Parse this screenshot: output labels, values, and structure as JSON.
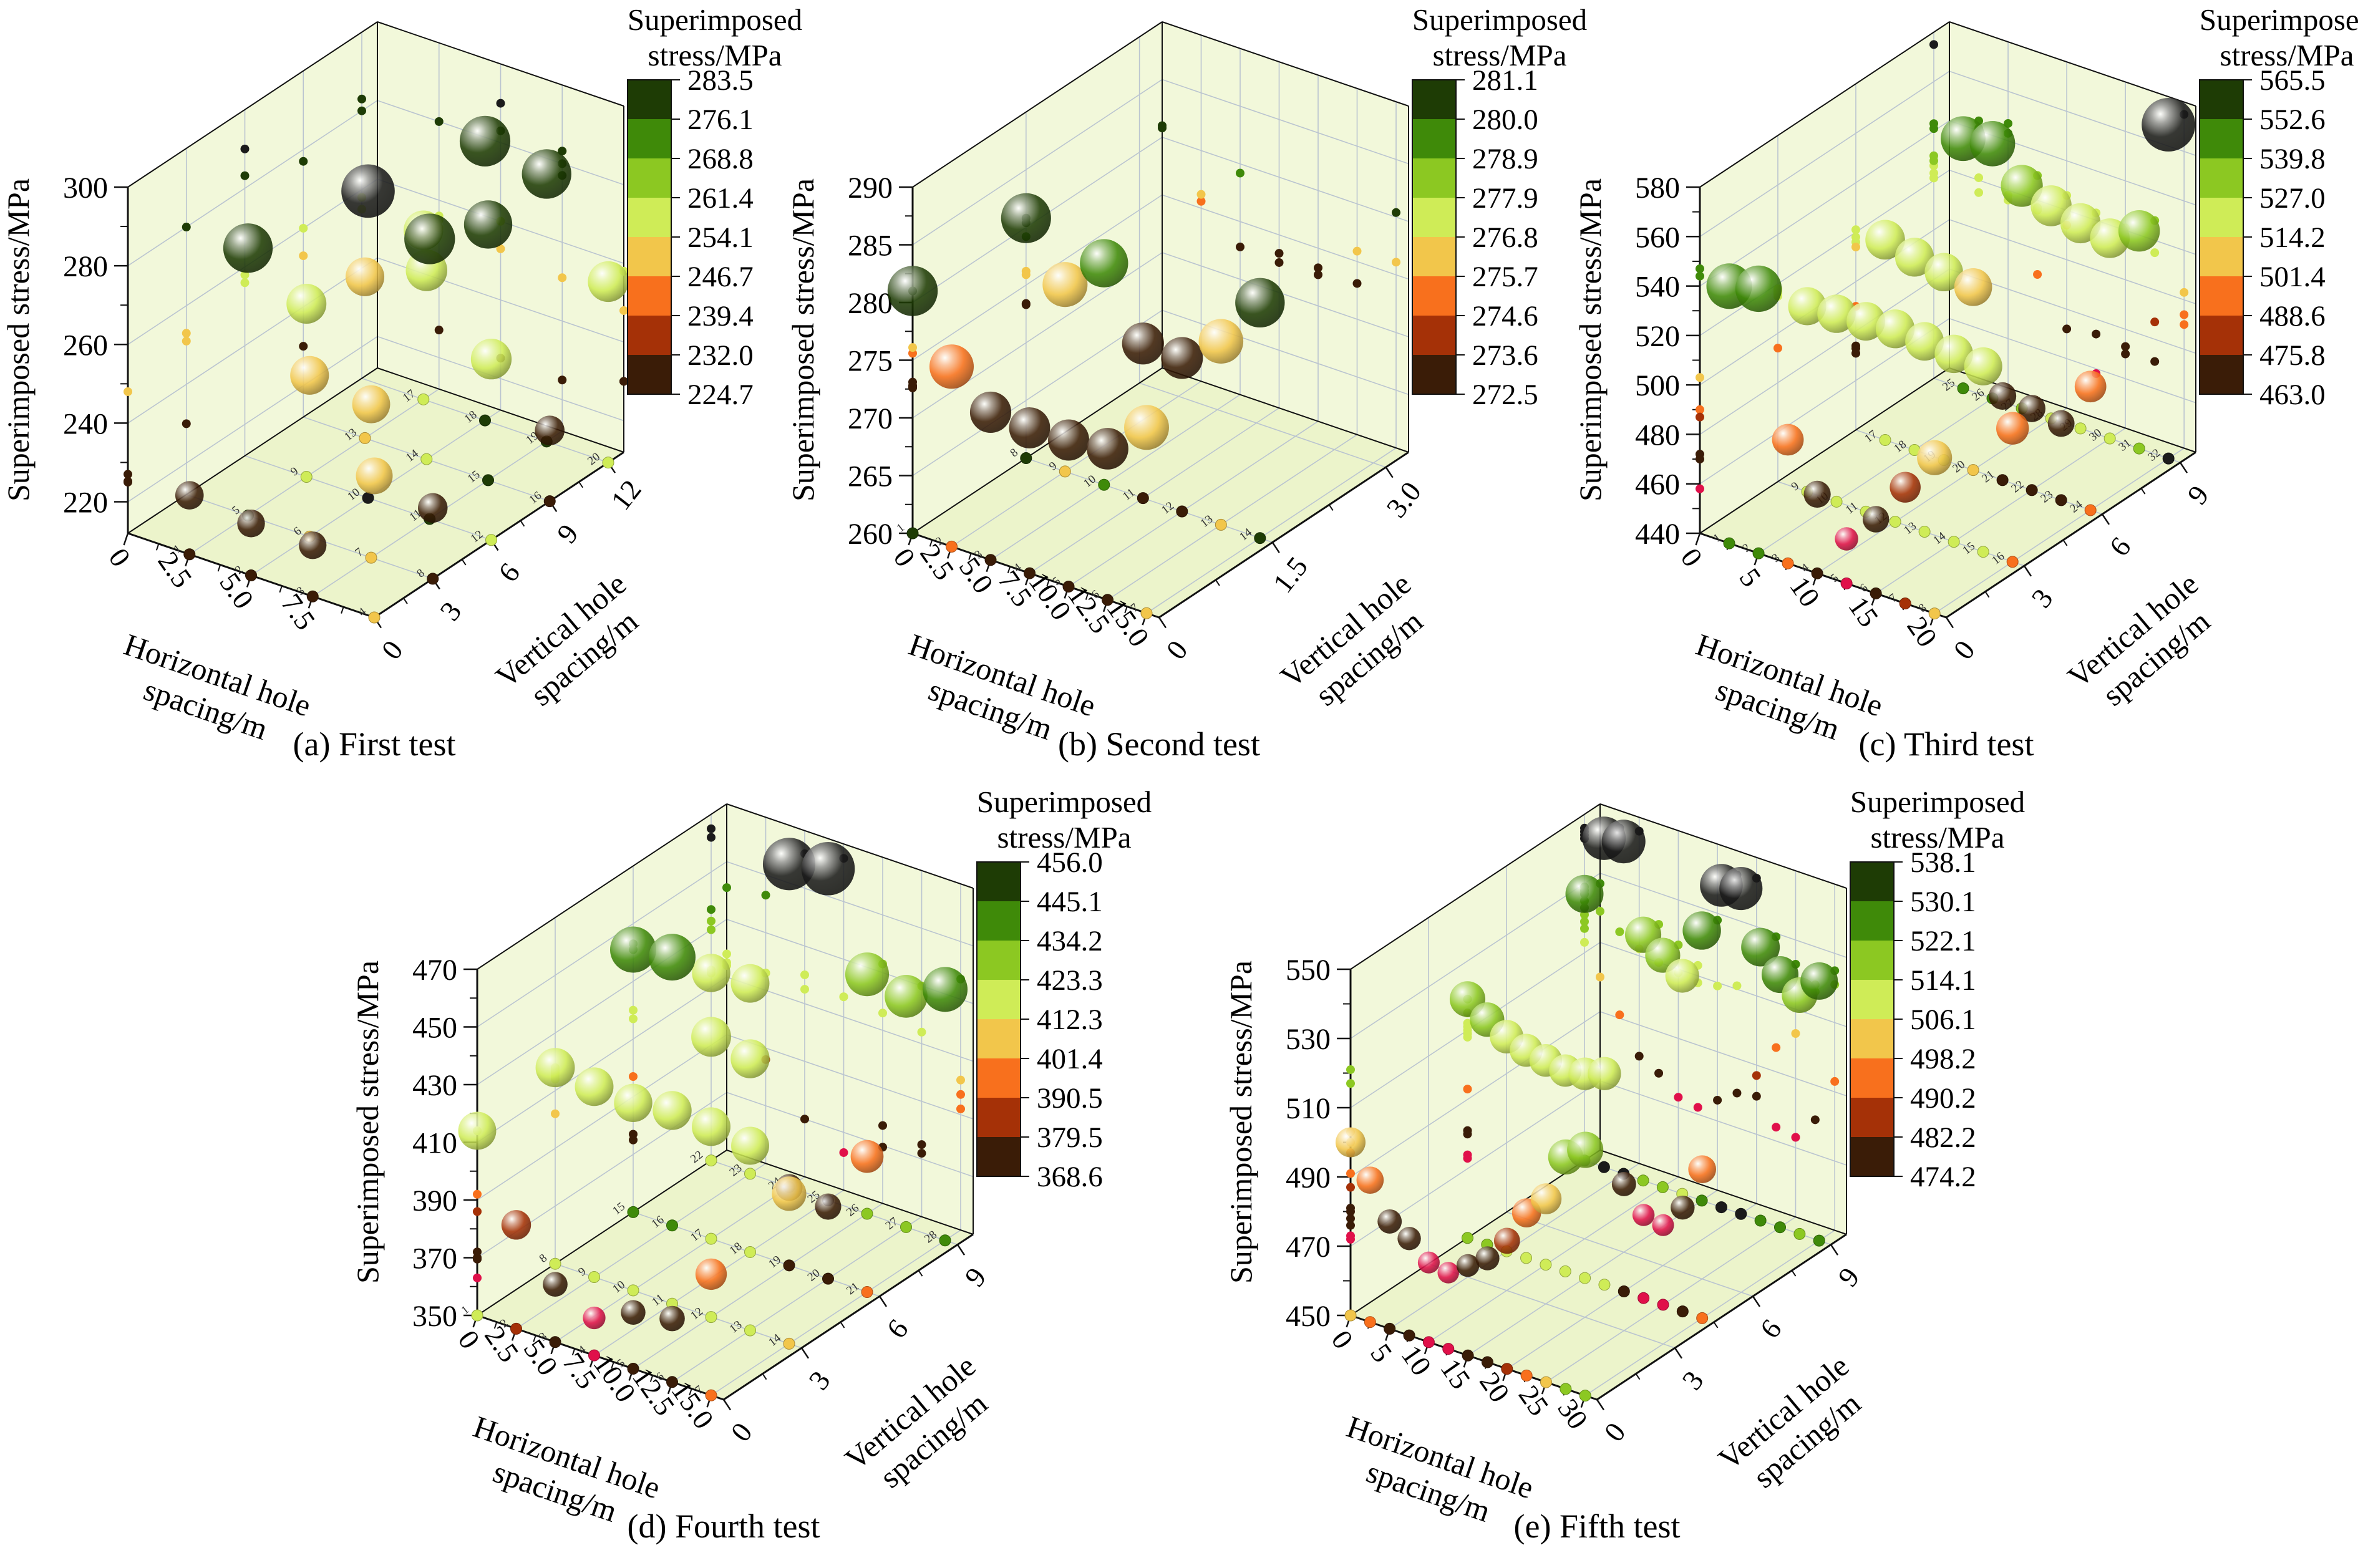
{
  "style": {
    "band_colors": [
      "#1e3c05",
      "#3f8a09",
      "#8cc822",
      "#cfec57",
      "#f2c64b",
      "#f8701d",
      "#a53107",
      "#3a1c07"
    ],
    "above_max_color": "#1b1b1b",
    "below_min_color": "#e0104a",
    "wall_color": "#f2f8da",
    "floor_color": "#ecf4cb",
    "grid_color": "#bac4d0",
    "edge_color": "#111111",
    "text_color": "#000000"
  },
  "chart_data": [
    {
      "id": "first-test",
      "type": "bubble3d",
      "caption": "(a) First test",
      "z_axis": {
        "title": "Superimposed stress/MPa",
        "min": 212,
        "max": 300,
        "ticks": [
          220,
          240,
          260,
          280,
          300
        ]
      },
      "x_axis": {
        "title_lines": [
          "Horizontal hole",
          "spacing/m"
        ],
        "max": 10,
        "tick_labels": [
          "0",
          "2.5",
          "5.0",
          "7.5"
        ],
        "tick_values": [
          0,
          2.5,
          5,
          7.5
        ]
      },
      "y_axis": {
        "title_lines": [
          "Vertical hole",
          "spacing/m"
        ],
        "max": 12.8,
        "tick_labels": [
          "0",
          "3",
          "6",
          "9",
          "12"
        ],
        "tick_values": [
          0,
          3,
          6,
          9,
          12
        ]
      },
      "colorbar": {
        "title_lines": [
          "Superimposed",
          "stress/MPa"
        ],
        "levels": [
          "283.5",
          "276.1",
          "268.8",
          "261.4",
          "254.1",
          "246.7",
          "239.4",
          "232.0",
          "224.7"
        ]
      },
      "size_range": [
        18,
        46
      ],
      "floor_numbers": true,
      "bubbles": [
        [
          2.5,
          0,
          227
        ],
        [
          5,
          0,
          225.2
        ],
        [
          7.5,
          0,
          225
        ],
        [
          10,
          0,
          248
        ],
        [
          2.5,
          3,
          280
        ],
        [
          5,
          3,
          253
        ],
        [
          7.5,
          3,
          251
        ],
        [
          10,
          3,
          230
        ],
        [
          2.5,
          6,
          256
        ],
        [
          5,
          6,
          290
        ],
        [
          7.5,
          6,
          283.2
        ],
        [
          10,
          6,
          258
        ],
        [
          2.5,
          9,
          253
        ],
        [
          5,
          9,
          260
        ],
        [
          7.5,
          9,
          277
        ],
        [
          10,
          9,
          230
        ],
        [
          2.5,
          12,
          255
        ],
        [
          5,
          12,
          283
        ],
        [
          7.5,
          12,
          280
        ],
        [
          10,
          12,
          258
        ]
      ]
    },
    {
      "id": "second-test",
      "type": "bubble3d",
      "caption": "(b) Second test",
      "z_axis": {
        "title": "Superimposed stress/MPa",
        "min": 260,
        "max": 290,
        "ticks": [
          260,
          265,
          270,
          275,
          280,
          285,
          290
        ]
      },
      "x_axis": {
        "title_lines": [
          "Horizontal hole",
          "spacing/m"
        ],
        "max": 15.8,
        "tick_labels": [
          "0",
          "2.5",
          "5.0",
          "7.5",
          "10.0",
          "12.5",
          "15.0"
        ],
        "tick_values": [
          0,
          2.5,
          5,
          7.5,
          10,
          12.5,
          15
        ]
      },
      "y_axis": {
        "title_lines": [
          "Vertical hole",
          "spacing/m"
        ],
        "max": 3.3,
        "tick_labels": [
          "0",
          "1.5",
          "3.0"
        ],
        "tick_values": [
          0,
          1.5,
          3
        ]
      },
      "colorbar": {
        "title_lines": [
          "Superimposed",
          "stress/MPa"
        ],
        "levels": [
          "281.1",
          "280.0",
          "278.9",
          "277.9",
          "276.8",
          "275.7",
          "274.6",
          "273.6",
          "272.5"
        ]
      },
      "size_range": [
        22,
        48
      ],
      "floor_numbers": true,
      "bubbles": [
        [
          0,
          0,
          281
        ],
        [
          2.5,
          0,
          275.6
        ],
        [
          5,
          0,
          272.8
        ],
        [
          7.5,
          0,
          272.6
        ],
        [
          10,
          0,
          272.7
        ],
        [
          12.5,
          0,
          273.1
        ],
        [
          15,
          0,
          276.1
        ],
        [
          0,
          1.5,
          280.8
        ],
        [
          2.5,
          1.5,
          276.2
        ],
        [
          5,
          1.5,
          279.2
        ],
        [
          7.5,
          1.5,
          273.4
        ],
        [
          10,
          1.5,
          273.3
        ],
        [
          12.5,
          1.5,
          275.9
        ],
        [
          15,
          1.5,
          280.4
        ]
      ]
    },
    {
      "id": "third-test",
      "type": "bubble3d",
      "caption": "(c) Third test",
      "z_axis": {
        "title": "Superimposed stress/MPa",
        "min": 440,
        "max": 580,
        "ticks": [
          440,
          460,
          480,
          500,
          520,
          540,
          560,
          580
        ]
      },
      "x_axis": {
        "title_lines": [
          "Horizontal hole",
          "spacing/m"
        ],
        "max": 21,
        "tick_labels": [
          "0",
          "5",
          "10",
          "15",
          "20"
        ],
        "tick_values": [
          0,
          5,
          10,
          15,
          20
        ]
      },
      "y_axis": {
        "title_lines": [
          "Vertical hole",
          "spacing/m"
        ],
        "max": 9.6,
        "tick_labels": [
          "0",
          "3",
          "6",
          "9"
        ],
        "tick_values": [
          0,
          3,
          6,
          9
        ]
      },
      "colorbar": {
        "title_lines": [
          "Superimposed",
          "stress/MPa"
        ],
        "levels": [
          "565.5",
          "552.6",
          "539.8",
          "527.0",
          "514.2",
          "501.4",
          "488.6",
          "475.8",
          "463.0"
        ]
      },
      "size_range": [
        15,
        44
      ],
      "floor_numbers": true,
      "bubbles": [
        [
          2.5,
          0,
          544
        ],
        [
          5,
          0,
          547
        ],
        [
          7.5,
          0,
          490
        ],
        [
          10,
          0,
          472
        ],
        [
          12.5,
          0,
          458
        ],
        [
          15,
          0,
          470
        ],
        [
          17.5,
          0,
          487
        ],
        [
          20,
          0,
          503
        ],
        [
          2.5,
          3,
          515
        ],
        [
          5,
          3,
          516
        ],
        [
          7.5,
          3,
          517
        ],
        [
          10,
          3,
          518
        ],
        [
          12.5,
          3,
          517
        ],
        [
          15,
          3,
          516
        ],
        [
          17.5,
          3,
          515
        ],
        [
          20,
          3,
          494
        ],
        [
          2.5,
          6,
          521
        ],
        [
          5,
          6,
          518
        ],
        [
          7.5,
          6,
          516
        ],
        [
          10,
          6,
          514
        ],
        [
          12.5,
          6,
          474
        ],
        [
          15,
          6,
          473
        ],
        [
          17.5,
          6,
          471
        ],
        [
          20,
          6,
          490
        ],
        [
          2.5,
          9,
          541
        ],
        [
          5,
          9,
          543
        ],
        [
          7.5,
          9,
          530
        ],
        [
          10,
          9,
          526
        ],
        [
          12.5,
          9,
          523
        ],
        [
          15,
          9,
          521
        ],
        [
          17.5,
          9,
          528
        ],
        [
          20,
          9,
          575
        ]
      ]
    },
    {
      "id": "fourth-test",
      "type": "bubble3d",
      "caption": "(d) Fourth test",
      "z_axis": {
        "title": "Superimposed stress/MPa",
        "min": 350,
        "max": 470,
        "ticks": [
          350,
          370,
          390,
          410,
          430,
          450,
          470
        ]
      },
      "x_axis": {
        "title_lines": [
          "Horizontal hole",
          "spacing/m"
        ],
        "max": 15.8,
        "tick_labels": [
          "0",
          "2.5",
          "5.0",
          "7.5",
          "10.0",
          "12.5",
          "15.0"
        ],
        "tick_values": [
          0,
          2.5,
          5,
          7.5,
          10,
          12.5,
          15
        ]
      },
      "y_axis": {
        "title_lines": [
          "Vertical hole",
          "spacing/m"
        ],
        "max": 9.6,
        "tick_labels": [
          "0",
          "3",
          "6",
          "9"
        ],
        "tick_values": [
          0,
          3,
          6,
          9
        ]
      },
      "colorbar": {
        "title_lines": [
          "Superimposed",
          "stress/MPa"
        ],
        "levels": [
          "456.0",
          "445.1",
          "434.2",
          "423.3",
          "412.3",
          "401.4",
          "390.5",
          "379.5",
          "368.6"
        ]
      },
      "size_range": [
        15,
        44
      ],
      "floor_numbers": true,
      "bubbles": [
        [
          0,
          0,
          414
        ],
        [
          2.5,
          0,
          386
        ],
        [
          5,
          0,
          370
        ],
        [
          7.5,
          0,
          363
        ],
        [
          10,
          0,
          369.5
        ],
        [
          12.5,
          0,
          372
        ],
        [
          15,
          0,
          392
        ],
        [
          0,
          3,
          418
        ],
        [
          2.5,
          3,
          416
        ],
        [
          5,
          3,
          415
        ],
        [
          7.5,
          3,
          417
        ],
        [
          10,
          3,
          416
        ],
        [
          12.5,
          3,
          414
        ],
        [
          15,
          3,
          402
        ],
        [
          0,
          6,
          441
        ],
        [
          2.5,
          6,
          443
        ],
        [
          5,
          6,
          420
        ],
        [
          7.5,
          6,
          417
        ],
        [
          10,
          6,
          377
        ],
        [
          12.5,
          6,
          375
        ],
        [
          15,
          6,
          397
        ],
        [
          0,
          9,
          415
        ],
        [
          2.5,
          9,
          416
        ],
        [
          5,
          9,
          462
        ],
        [
          7.5,
          9,
          465
        ],
        [
          10,
          9,
          433
        ],
        [
          12.5,
          9,
          430
        ],
        [
          15,
          9,
          437
        ]
      ]
    },
    {
      "id": "fifth-test",
      "type": "bubble3d",
      "caption": "(e) Fifth test",
      "z_axis": {
        "title": "Superimposed stress/MPa",
        "min": 450,
        "max": 550,
        "ticks": [
          450,
          470,
          490,
          510,
          530,
          550
        ]
      },
      "x_axis": {
        "title_lines": [
          "Horizontal hole",
          "spacing/m"
        ],
        "max": 31.5,
        "tick_labels": [
          "0",
          "5",
          "10",
          "15",
          "20",
          "25",
          "30"
        ],
        "tick_values": [
          0,
          5,
          10,
          15,
          20,
          25,
          30
        ]
      },
      "y_axis": {
        "title_lines": [
          "Vertical hole",
          "spacing/m"
        ],
        "max": 9.6,
        "tick_labels": [
          "0",
          "3",
          "6",
          "9"
        ],
        "tick_values": [
          0,
          3,
          6,
          9
        ]
      },
      "colorbar": {
        "title_lines": [
          "Superimposed",
          "stress/MPa"
        ],
        "levels": [
          "538.1",
          "530.1",
          "522.1",
          "514.1",
          "506.1",
          "498.2",
          "490.2",
          "482.2",
          "474.2"
        ]
      },
      "size_range": [
        12,
        36
      ],
      "floor_numbers": false,
      "bubbles": [
        [
          0,
          0,
          500
        ],
        [
          2.5,
          0,
          491
        ],
        [
          5,
          0,
          481
        ],
        [
          7.5,
          0,
          478
        ],
        [
          10,
          0,
          473
        ],
        [
          12.5,
          0,
          472
        ],
        [
          15,
          0,
          476
        ],
        [
          17.5,
          0,
          480
        ],
        [
          20,
          0,
          487
        ],
        [
          22.5,
          0,
          497
        ],
        [
          25,
          0,
          503
        ],
        [
          27.5,
          0,
          517
        ],
        [
          30,
          0,
          521
        ],
        [
          0,
          4.5,
          519
        ],
        [
          2.5,
          4.5,
          515
        ],
        [
          5,
          4.5,
          512
        ],
        [
          7.5,
          4.5,
          510
        ],
        [
          10,
          4.5,
          509
        ],
        [
          12.5,
          4.5,
          508
        ],
        [
          15,
          4.5,
          509
        ],
        [
          17.5,
          4.5,
          511
        ],
        [
          20,
          4.5,
          481
        ],
        [
          22.5,
          4.5,
          474
        ],
        [
          25,
          4.5,
          473
        ],
        [
          27.5,
          4.5,
          480
        ],
        [
          30,
          4.5,
          493
        ],
        [
          0,
          9,
          527
        ],
        [
          2.5,
          9,
          545
        ],
        [
          5,
          9,
          546
        ],
        [
          7.5,
          9,
          521
        ],
        [
          10,
          9,
          517
        ],
        [
          12.5,
          9,
          513
        ],
        [
          15,
          9,
          528
        ],
        [
          17.5,
          9,
          543
        ],
        [
          20,
          9,
          544
        ],
        [
          22.5,
          9,
          529
        ],
        [
          25,
          9,
          523
        ],
        [
          27.5,
          9,
          519
        ],
        [
          30,
          9,
          525
        ]
      ]
    }
  ]
}
